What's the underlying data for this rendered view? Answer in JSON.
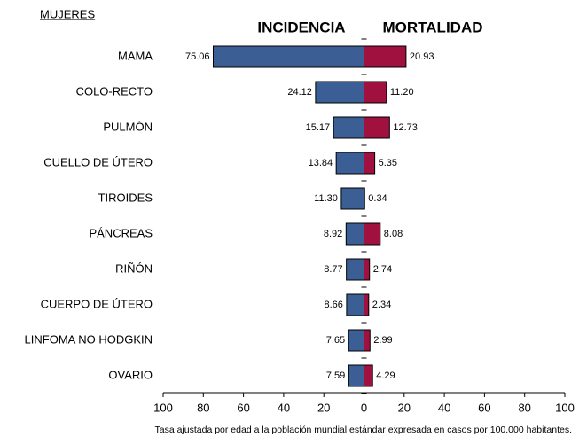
{
  "chart_data": {
    "type": "bar",
    "orientation": "horizontal",
    "title": "MUJERES",
    "categories": [
      "MAMA",
      "COLO-RECTO",
      "PULMÓN",
      "CUELLO DE ÚTERO",
      "TIROIDES",
      "PÁNCREAS",
      "RIÑÓN",
      "CUERPO DE ÚTERO",
      "LINFOMA NO HODGKIN",
      "OVARIO"
    ],
    "series": [
      {
        "name": "INCIDENCIA",
        "color": "#3b5f95",
        "values": [
          -75.06,
          -24.12,
          -15.17,
          -13.84,
          -11.3,
          -8.92,
          -8.77,
          -8.66,
          -7.65,
          -7.59
        ],
        "value_labels": [
          "75.06",
          "24.12",
          "15.17",
          "13.84",
          "11.30",
          "8.92",
          "8.77",
          "8.66",
          "7.65",
          "7.59"
        ]
      },
      {
        "name": "MORTALIDAD",
        "color": "#a0113f",
        "values": [
          20.93,
          11.2,
          12.73,
          5.35,
          0.34,
          8.08,
          2.74,
          2.34,
          2.99,
          4.29
        ],
        "value_labels": [
          "20.93",
          "11.20",
          "12.73",
          "5.35",
          "0.34",
          "8.08",
          "2.74",
          "2.34",
          "2.99",
          "4.29"
        ]
      }
    ],
    "xlim": [
      -100,
      100
    ],
    "xticks": [
      {
        "value": -100,
        "label": "100"
      },
      {
        "value": -80,
        "label": "80"
      },
      {
        "value": -60,
        "label": "60"
      },
      {
        "value": -40,
        "label": "40"
      },
      {
        "value": -20,
        "label": "20"
      },
      0,
      20,
      40,
      60,
      80,
      100
    ],
    "footnote": "Tasa ajustada por edad a la población mundial estándar expresada en casos por 100.000 habitantes."
  }
}
